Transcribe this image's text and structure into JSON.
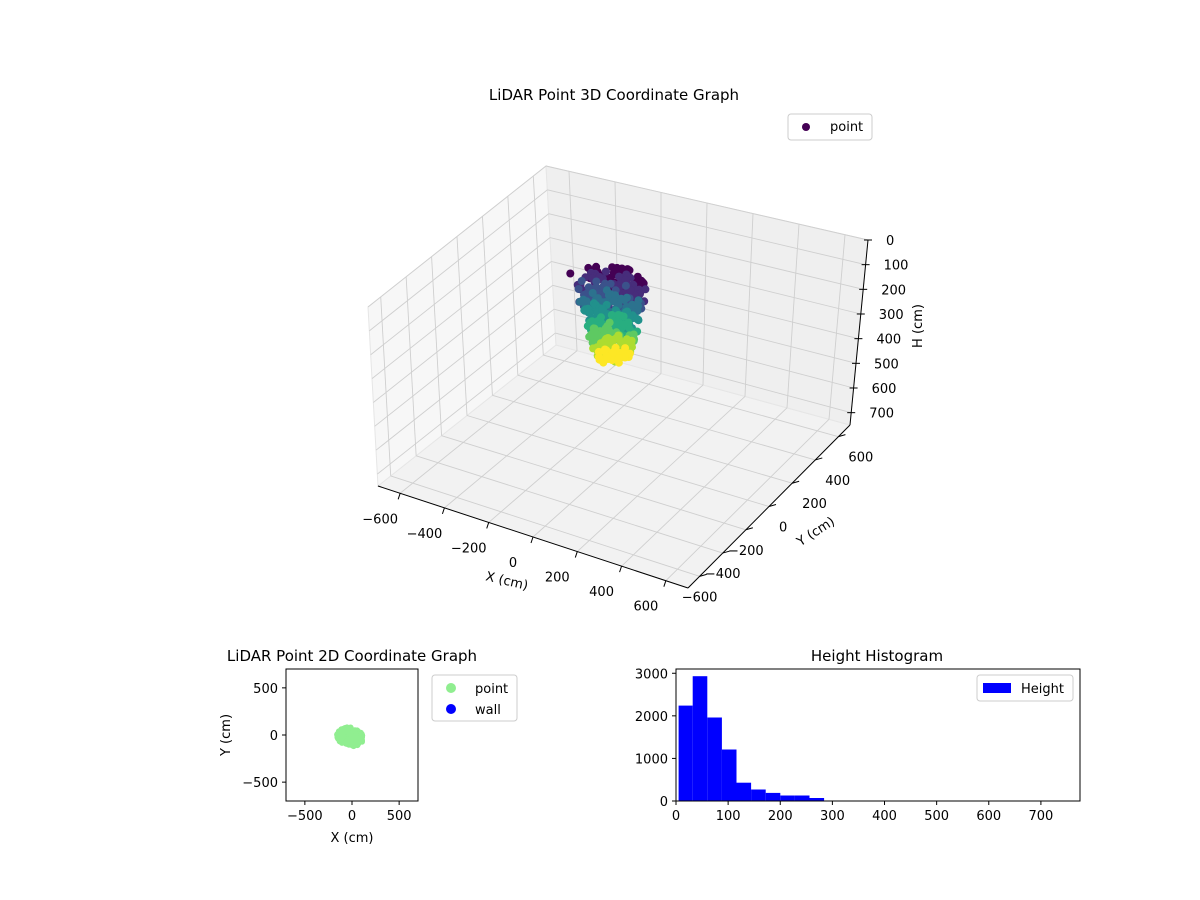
{
  "chart_data": [
    {
      "type": "scatter",
      "projection": "3d",
      "title": "LiDAR Point 3D Coordinate Graph",
      "xlabel": "X (cm)",
      "ylabel": "Y (cm)",
      "zlabel": "H (cm)",
      "xlim": [
        -700,
        700
      ],
      "ylim": [
        -700,
        700
      ],
      "zlim": [
        0,
        750
      ],
      "z_inverted": true,
      "xticks": [
        -600,
        -400,
        -200,
        0,
        200,
        400,
        600
      ],
      "yticks": [
        -600,
        -400,
        -200,
        0,
        200,
        400,
        600
      ],
      "zticks": [
        0,
        100,
        200,
        300,
        400,
        500,
        600,
        700
      ],
      "colormap": "viridis",
      "grid": true,
      "legend": {
        "position": "top-right",
        "entries": [
          {
            "label": "point",
            "color": "#440154"
          }
        ]
      },
      "series": [
        {
          "name": "point",
          "x_range": [
            -200,
            150
          ],
          "y_range": [
            -130,
            130
          ],
          "h_range": [
            0,
            300
          ]
        }
      ]
    },
    {
      "type": "scatter",
      "title": "LiDAR Point 2D Coordinate Graph",
      "xlabel": "X (cm)",
      "ylabel": "Y (cm)",
      "xlim": [
        -700,
        700
      ],
      "ylim": [
        -700,
        700
      ],
      "xticks": [
        -500,
        0,
        500
      ],
      "yticks": [
        -500,
        0,
        500
      ],
      "legend": {
        "position": "outside-right",
        "entries": [
          {
            "label": "point",
            "color": "#90ee90"
          },
          {
            "label": "wall",
            "color": "#0000ff"
          }
        ]
      },
      "series": [
        {
          "name": "point",
          "color": "#90ee90",
          "x_range": [
            -200,
            150
          ],
          "y_range": [
            -120,
            100
          ]
        },
        {
          "name": "wall",
          "color": "#0000ff",
          "points": []
        }
      ]
    },
    {
      "type": "bar",
      "subtype": "histogram",
      "title": "Height Histogram",
      "xlabel": "",
      "ylabel": "",
      "xlim": [
        0,
        775
      ],
      "ylim": [
        0,
        3100
      ],
      "xticks": [
        0,
        100,
        200,
        300,
        400,
        500,
        600,
        700
      ],
      "yticks": [
        0,
        1000,
        2000,
        3000
      ],
      "color": "#0000ff",
      "legend": {
        "position": "top-right",
        "entries": [
          {
            "label": "Height",
            "color": "#0000ff"
          }
        ]
      },
      "bin_edges": [
        5,
        32,
        60,
        88,
        116,
        144,
        172,
        200,
        228,
        256,
        284
      ],
      "values": [
        2240,
        2930,
        1960,
        1210,
        430,
        270,
        190,
        130,
        130,
        70
      ]
    }
  ]
}
